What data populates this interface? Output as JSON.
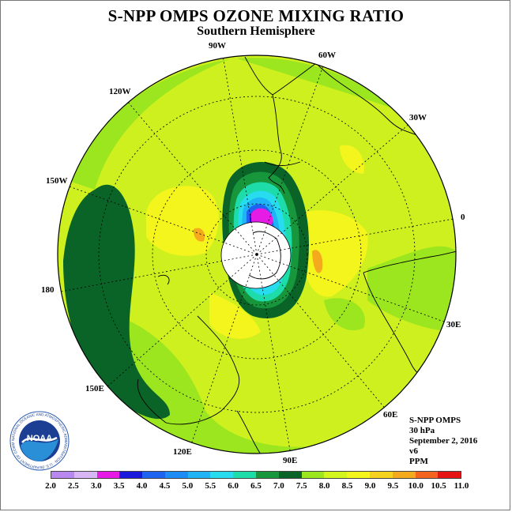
{
  "title": "S-NPP OMPS OZONE MIXING RATIO",
  "subtitle": "Southern Hemisphere",
  "lon_labels": [
    "90W",
    "60W",
    "120W",
    "30W",
    "150W",
    "0",
    "180",
    "30E",
    "150E",
    "60E",
    "120E",
    "90E"
  ],
  "info": {
    "instrument": "S-NPP OMPS",
    "level": "30 hPa",
    "date": "September 2, 2016",
    "version": "v6",
    "units": "PPM"
  },
  "logo": {
    "text": "NOAA",
    "ring_text": "NATIONAL OCEANIC AND ATMOSPHERIC ADMINISTRATION · U.S. DEPARTMENT OF COMMERCE"
  },
  "colorbar": {
    "labels": [
      "2.0",
      "2.5",
      "3.0",
      "3.5",
      "4.0",
      "4.5",
      "5.0",
      "5.5",
      "6.0",
      "6.5",
      "7.0",
      "7.5",
      "8.0",
      "8.5",
      "9.0",
      "9.5",
      "10.0",
      "10.5",
      "11.0"
    ],
    "colors": [
      "#b987f0",
      "#d8b5f5",
      "#e61be6",
      "#1a1adc",
      "#1e64f0",
      "#1e8cf5",
      "#1eb4f5",
      "#28dcf0",
      "#1edcaa",
      "#18963c",
      "#0a6428",
      "#9be61e",
      "#d2f51e",
      "#f5f51e",
      "#f5d21e",
      "#f5aa1e",
      "#f5641e",
      "#e61414",
      "#8c5a3c"
    ]
  },
  "colors": {
    "background_field": "#cdf01e",
    "high_ridge": "#0a6428",
    "pole_mask": "#ffffff"
  }
}
